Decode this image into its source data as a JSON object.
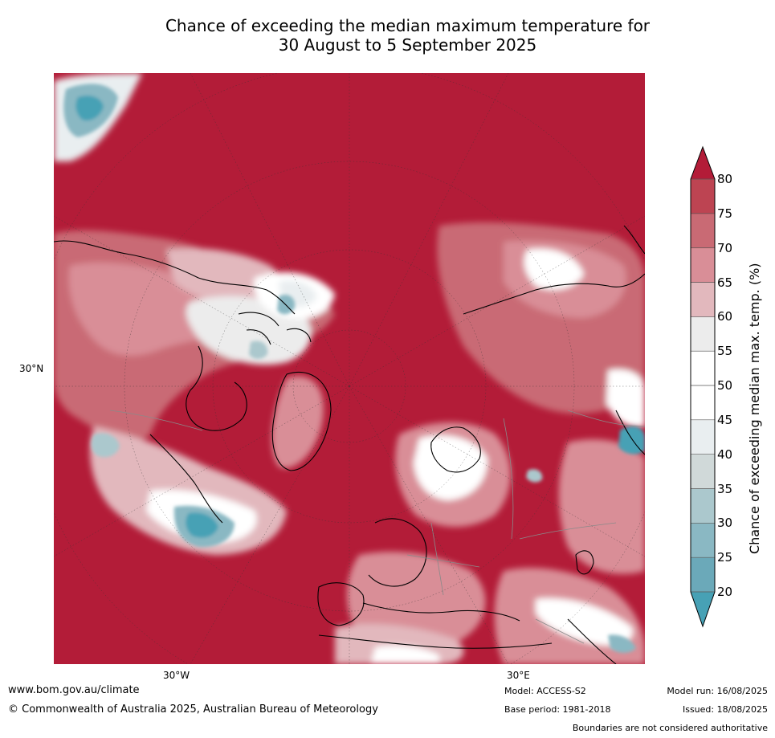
{
  "title": {
    "line1": "Chance of exceeding the median maximum temperature for",
    "line2": "30 August to 5 September 2025"
  },
  "map": {
    "projection": "north polar stereographic",
    "lat_label": "30°N",
    "lon_labels": [
      "30°W",
      "30°E"
    ],
    "dominant_color": "#b31c38"
  },
  "colorbar": {
    "label": "Chance of exceeding median max. temp. (%)",
    "ticks": [
      "20",
      "25",
      "30",
      "35",
      "40",
      "45",
      "50",
      "55",
      "60",
      "65",
      "70",
      "75",
      "80"
    ],
    "colors": [
      "#47a1b5",
      "#6ba9b9",
      "#8ab8c3",
      "#abc8cd",
      "#d0d9d9",
      "#e9eef0",
      "#ffffff",
      "#ffffff",
      "#ececec",
      "#e2b8bd",
      "#d98e97",
      "#c96a74",
      "#bd4452",
      "#b31c38"
    ]
  },
  "footer": {
    "website": "www.bom.gov.au/climate",
    "copyright": "© Commonwealth of Australia 2025, Australian Bureau of Meteorology",
    "model": "Model: ACCESS-S2",
    "base_period": "Base period: 1981-2018",
    "model_run": "Model run: 16/08/2025",
    "issued": "Issued: 18/08/2025",
    "disclaimer": "Boundaries are not considered authoritative"
  }
}
